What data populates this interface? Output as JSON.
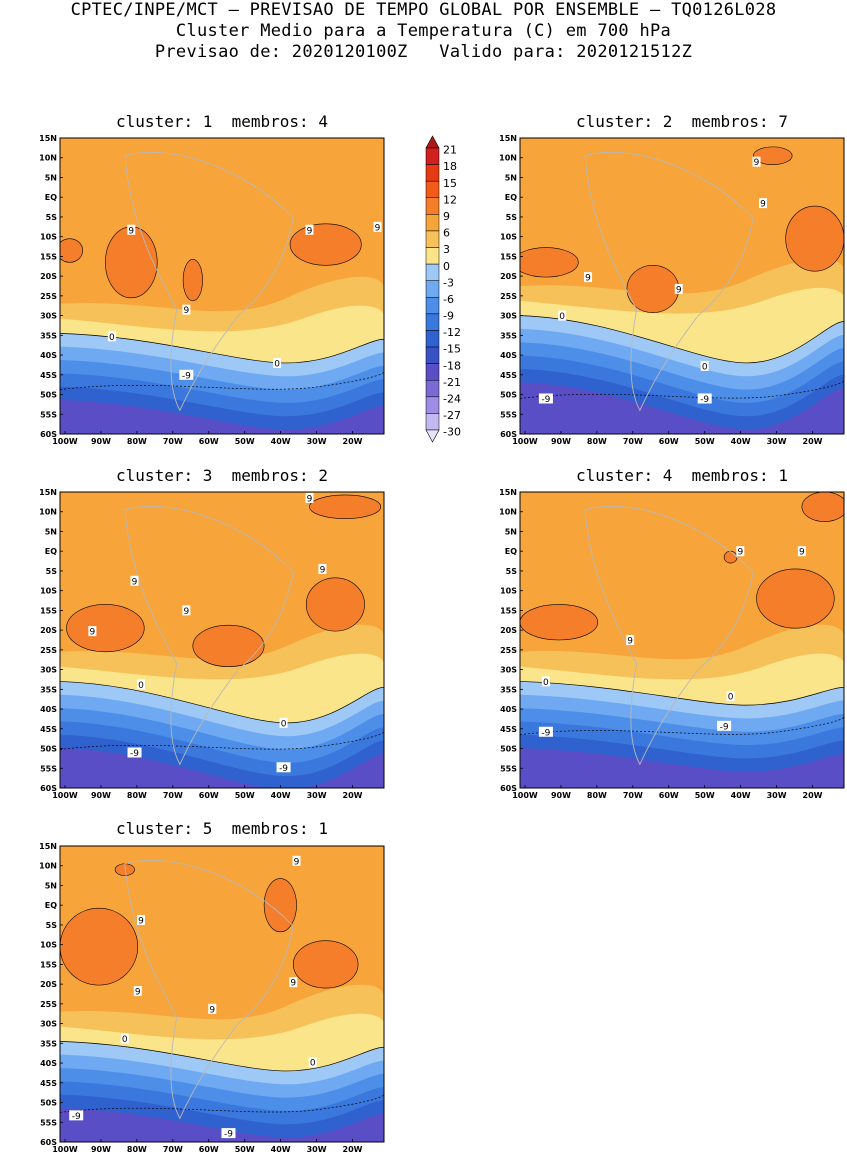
{
  "header": {
    "line1": "CPTEC/INPE/MCT — PREVISAO DE TEMPO GLOBAL POR ENSEMBLE — TQ0126L028",
    "line2": "Cluster Medio para a Temperatura (C) em 700 hPa",
    "line3": "Previsao de: 2020120100Z   Valido para: 2020121512Z"
  },
  "panels": [
    {
      "title": "cluster: 1  membros: 4",
      "labels": [
        "9",
        "9",
        "9",
        "9",
        "0",
        "0",
        "-9"
      ]
    },
    {
      "title": "cluster: 2  membros: 7",
      "labels": [
        "9",
        "9",
        "9",
        "9",
        "0",
        "0",
        "-9",
        "-9"
      ]
    },
    {
      "title": "cluster: 3  membros: 2",
      "labels": [
        "9",
        "9",
        "9",
        "9",
        "9",
        "0",
        "0",
        "-9",
        "-9"
      ]
    },
    {
      "title": "cluster: 4  membros: 1",
      "labels": [
        "9",
        "9",
        "9",
        "0",
        "0",
        "-9",
        "-9"
      ]
    },
    {
      "title": "cluster: 5  membros: 1",
      "labels": [
        "9",
        "9",
        "9",
        "9",
        "9",
        "0",
        "0",
        "-9",
        "-9"
      ]
    }
  ],
  "axes": {
    "lat_ticks": [
      "15N",
      "10N",
      "5N",
      "EQ",
      "5S",
      "10S",
      "15S",
      "20S",
      "25S",
      "30S",
      "35S",
      "40S",
      "45S",
      "50S",
      "55S",
      "60S"
    ],
    "lon_ticks": [
      "100W",
      "90W",
      "80W",
      "70W",
      "60W",
      "50W",
      "40W",
      "30W",
      "20W"
    ]
  },
  "colorbar": {
    "labels": [
      "21",
      "18",
      "15",
      "12",
      "9",
      "6",
      "3",
      "0",
      "-3",
      "-6",
      "-9",
      "-12",
      "-15",
      "-18",
      "-21",
      "-24",
      "-27",
      "-30"
    ],
    "colors": [
      "#b01818",
      "#d02020",
      "#e83a12",
      "#f25c18",
      "#f57e2a",
      "#f7a43a",
      "#f7c15a",
      "#fbe58a",
      "#9ec8f5",
      "#6fa9f2",
      "#4d8ee8",
      "#3b78dd",
      "#2f62cf",
      "#3a53c4",
      "#5a4ec7",
      "#7a6ad6",
      "#9d8de6",
      "#c3b8f0",
      "#e8e4fa"
    ]
  },
  "colors": {
    "warm": "#f7a43a",
    "warmer": "#f57e2a",
    "hot": "#f25c18",
    "light": "#f7c15a",
    "pale": "#fbe58a",
    "cool1": "#9ec8f5",
    "cool2": "#6fa9f2",
    "cool3": "#4d8ee8",
    "cool4": "#3b78dd",
    "cool5": "#2f62cf",
    "cool6": "#5a4ec7",
    "coast": "#b8b8b8"
  }
}
